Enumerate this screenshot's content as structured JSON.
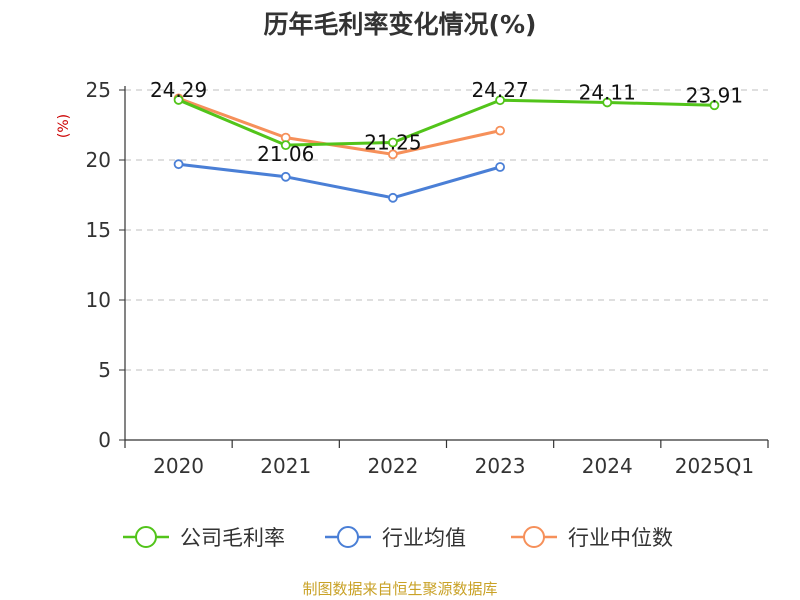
{
  "chart_data": {
    "type": "line",
    "title": "历年毛利率变化情况(%)",
    "ylabel": "(%)",
    "xlabel": "",
    "categories": [
      "2020",
      "2021",
      "2022",
      "2023",
      "2024",
      "2025Q1"
    ],
    "ylim": [
      0,
      25
    ],
    "yticks": [
      0,
      5,
      10,
      15,
      20,
      25
    ],
    "grid": true,
    "legend_position": "bottom",
    "series": [
      {
        "name": "公司毛利率",
        "color": "#52c41a",
        "values": [
          24.29,
          21.06,
          21.25,
          24.27,
          24.11,
          23.91
        ]
      },
      {
        "name": "行业均值",
        "color": "#4a7fd6",
        "values": [
          19.7,
          18.8,
          17.3,
          19.5,
          null,
          null
        ]
      },
      {
        "name": "行业中位数",
        "color": "#f6905a",
        "values": [
          24.4,
          21.6,
          20.4,
          22.1,
          null,
          null
        ]
      }
    ],
    "data_labels": [
      {
        "series": 0,
        "index": 0,
        "text": "24.29"
      },
      {
        "series": 0,
        "index": 1,
        "text": "21.06"
      },
      {
        "series": 0,
        "index": 2,
        "text": "21.25"
      },
      {
        "series": 0,
        "index": 3,
        "text": "24.27"
      },
      {
        "series": 0,
        "index": 4,
        "text": "24.11"
      },
      {
        "series": 0,
        "index": 5,
        "text": "23.91"
      }
    ]
  },
  "footer": {
    "text": "制图数据来自恒生聚源数据库",
    "color": "#c9a227"
  },
  "colors": {
    "ylabel": "#cc0000",
    "axis": "#333333",
    "grid": "#cccccc"
  }
}
